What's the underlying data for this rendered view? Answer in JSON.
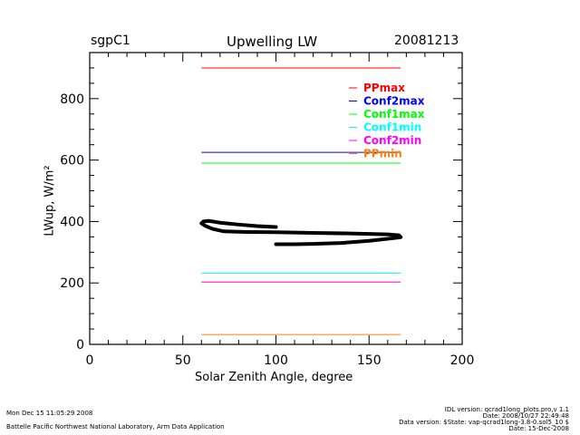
{
  "chart_data": {
    "type": "line",
    "title": "Upwelling LW",
    "site": "sgpC1",
    "date": "20081213",
    "xlabel": "Solar Zenith Angle, degree",
    "ylabel": "LWup, W/m²",
    "xlim": [
      0,
      200
    ],
    "ylim": [
      0,
      950
    ],
    "xticks": [
      0,
      50,
      100,
      150,
      200
    ],
    "yticks": [
      0,
      200,
      400,
      600,
      800
    ],
    "legend_position": "top-right",
    "thresholds": [
      {
        "name": "PPmax",
        "value": 900,
        "color": "#ff0000",
        "x": [
          60,
          167
        ]
      },
      {
        "name": "Conf2max",
        "value": 625,
        "color": "#0000ff",
        "x": [
          60,
          167
        ]
      },
      {
        "name": "Conf1max",
        "value": 590,
        "color": "#00ff00",
        "x": [
          60,
          167
        ]
      },
      {
        "name": "Conf1min",
        "value": 232,
        "color": "#00ffff",
        "x": [
          60,
          167
        ]
      },
      {
        "name": "Conf2min",
        "value": 203,
        "color": "#ff00ff",
        "x": [
          60,
          167
        ]
      },
      {
        "name": "PPmin",
        "value": 32,
        "color": "#ff8000",
        "x": [
          60,
          167
        ]
      }
    ],
    "series": [
      {
        "name": "LWup",
        "color": "#000000",
        "x": [
          100,
          90,
          80,
          70,
          64,
          61,
          60,
          62,
          66,
          72,
          85,
          100,
          120,
          140,
          160,
          166,
          167,
          162,
          150,
          135,
          120,
          110,
          100
        ],
        "y": [
          382,
          385,
          390,
          396,
          402,
          400,
          394,
          386,
          376,
          368,
          366,
          365,
          363,
          361,
          358,
          355,
          349,
          345,
          337,
          330,
          327,
          326,
          326
        ]
      }
    ]
  },
  "footer": {
    "timestamp": "Mon Dec 15 11:05:29 2008",
    "org": "Battelle Pacific Northwest National Laboratory, Arm Data Application",
    "idl_version": "IDL version: qcrad1long_plots.pro,v 1.1",
    "idl_date": "Date: 2008/10/27 22:49:48",
    "data_version": "Data version: $State: vap-qcrad1long-3.8-0.sol5_10 $",
    "data_date": "Date: 15-Dec-2008"
  }
}
